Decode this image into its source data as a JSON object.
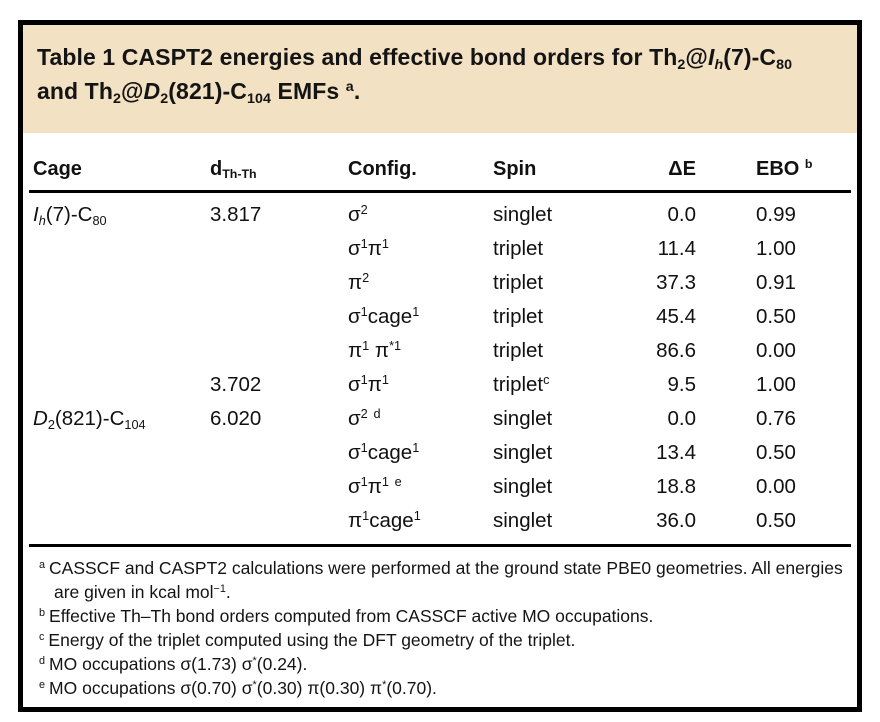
{
  "table": {
    "title": "Table 1 CASPT2 energies and effective bond orders for Th_2_@//I//_//h//_(7)-C_80_ and Th_2_@//D//_2_(821)-C_104_ EMFs ^a^.",
    "columns": [
      {
        "key": "cage",
        "label": "Cage"
      },
      {
        "key": "d",
        "label": "d_Th-Th_"
      },
      {
        "key": "config",
        "label": "Config."
      },
      {
        "key": "spin",
        "label": "Spin"
      },
      {
        "key": "dE",
        "label": "ΔE"
      },
      {
        "key": "ebo",
        "label": "EBO ^b^"
      }
    ],
    "rows": [
      {
        "cage": "//I//_//h//_(7)-C_80_",
        "d": "3.817",
        "config": "σ^2^",
        "spin": "singlet",
        "dE": "0.0",
        "ebo": "0.99"
      },
      {
        "cage": "",
        "d": "",
        "config": "σ^1^π^1^",
        "spin": "triplet",
        "dE": "11.4",
        "ebo": "1.00"
      },
      {
        "cage": "",
        "d": "",
        "config": "π^2^",
        "spin": "triplet",
        "dE": "37.3",
        "ebo": "0.91"
      },
      {
        "cage": "",
        "d": "",
        "config": "σ^1^cage^1^",
        "spin": "triplet",
        "dE": "45.4",
        "ebo": "0.50"
      },
      {
        "cage": "",
        "d": "",
        "config": "π^1^ π^*1^",
        "spin": "triplet",
        "dE": "86.6",
        "ebo": "0.00"
      },
      {
        "cage": "",
        "d": "3.702",
        "config": "σ^1^π^1^",
        "spin": "triplet^c^",
        "dE": "9.5",
        "ebo": "1.00"
      },
      {
        "cage": "//D//_2_(821)-C_104_",
        "d": "6.020",
        "config": "σ^2^ ^d^",
        "spin": "singlet",
        "dE": "0.0",
        "ebo": "0.76"
      },
      {
        "cage": "",
        "d": "",
        "config": "σ^1^cage^1^",
        "spin": "singlet",
        "dE": "13.4",
        "ebo": "0.50"
      },
      {
        "cage": "",
        "d": "",
        "config": "σ^1^π^1^ ^e^",
        "spin": "singlet",
        "dE": "18.8",
        "ebo": "0.00"
      },
      {
        "cage": "",
        "d": "",
        "config": "π^1^cage^1^",
        "spin": "singlet",
        "dE": "36.0",
        "ebo": "0.50"
      }
    ],
    "footnotes": [
      {
        "marker": "a",
        "text": "CASSCF and CASPT2 calculations were performed at the ground state PBE0 geometries. All energies are given in kcal mol^−1^."
      },
      {
        "marker": "b",
        "text": "Effective Th–Th bond orders computed from CASSCF active MO occupations."
      },
      {
        "marker": "c",
        "text": "Energy of the triplet computed using the DFT geometry of the triplet."
      },
      {
        "marker": "d",
        "text": "MO occupations σ(1.73) σ^*^(0.24)."
      },
      {
        "marker": "e",
        "text": "MO occupations σ(0.70) σ^*^(0.30) π(0.30) π^*^(0.70)."
      }
    ],
    "colors": {
      "header_band_bg": "#f2e1c3",
      "text": "#141414",
      "rule": "#000000"
    }
  }
}
